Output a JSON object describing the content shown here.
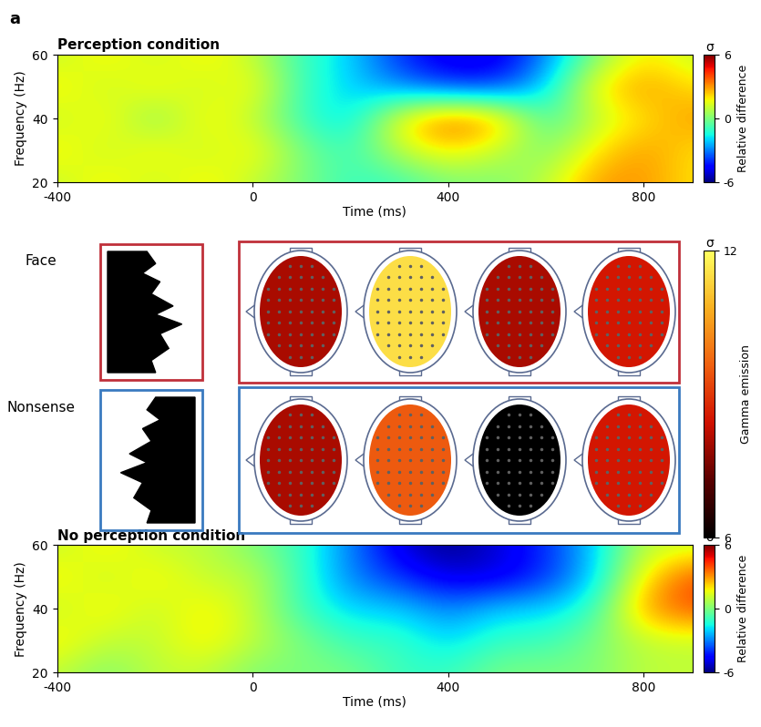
{
  "panel_label": "a",
  "chart_data": [
    {
      "type": "heatmap",
      "title": "Perception condition",
      "xlabel": "Time (ms)",
      "ylabel": "Frequency (Hz)",
      "x": [
        -400,
        -300,
        -200,
        -100,
        0,
        100,
        200,
        300,
        400,
        500,
        600,
        700,
        800,
        900
      ],
      "y": [
        20,
        30,
        40,
        50,
        60
      ],
      "cells": [
        [
          1,
          2,
          1,
          2,
          1,
          0,
          -1,
          -1,
          0,
          0,
          1,
          3,
          3,
          2
        ],
        [
          2,
          1,
          2,
          1,
          2,
          0,
          -1,
          1,
          2,
          1,
          0,
          2,
          3,
          2
        ],
        [
          1,
          2,
          0,
          2,
          1,
          -1,
          -2,
          2,
          4,
          3,
          -1,
          1,
          2,
          3
        ],
        [
          2,
          1,
          2,
          1,
          2,
          -1,
          -2,
          -3,
          -4,
          -4,
          -2,
          2,
          3,
          2
        ],
        [
          1,
          2,
          1,
          2,
          1,
          -1,
          -2,
          -4,
          -5,
          -5,
          -3,
          0,
          2,
          1
        ]
      ],
      "xlim": [
        -400,
        900
      ],
      "ylim": [
        20,
        60
      ],
      "xticks": [
        -400,
        0,
        400,
        800
      ],
      "yticks": [
        20,
        40,
        60
      ],
      "colorbar": {
        "range": [
          -6,
          6
        ],
        "ticks": [
          -6,
          0,
          6
        ],
        "label": "Relative difference",
        "unit": "σ"
      }
    },
    {
      "type": "heatmap",
      "title": "No perception condition",
      "xlabel": "Time (ms)",
      "ylabel": "Frequency (Hz)",
      "x": [
        -400,
        -300,
        -200,
        -100,
        0,
        100,
        200,
        300,
        400,
        500,
        600,
        700,
        800,
        900
      ],
      "y": [
        20,
        30,
        40,
        50,
        60
      ],
      "cells": [
        [
          1,
          0,
          1,
          1,
          0,
          0,
          0,
          -1,
          -1,
          0,
          0,
          0,
          1,
          1
        ],
        [
          2,
          1,
          1,
          2,
          1,
          0,
          -1,
          -1,
          -2,
          -1,
          -1,
          0,
          1,
          1
        ],
        [
          1,
          2,
          1,
          2,
          1,
          -1,
          -2,
          -2,
          -3,
          -2,
          -2,
          -1,
          3,
          4
        ],
        [
          2,
          1,
          2,
          1,
          1,
          -1,
          -3,
          -4,
          -5,
          -5,
          -4,
          -2,
          2,
          4
        ],
        [
          1,
          2,
          1,
          1,
          0,
          -1,
          -3,
          -5,
          -6,
          -5,
          -4,
          -2,
          1,
          1
        ]
      ],
      "xlim": [
        -400,
        900
      ],
      "ylim": [
        20,
        60
      ],
      "xticks": [
        -400,
        0,
        400,
        800
      ],
      "yticks": [
        20,
        40,
        60
      ],
      "colorbar": {
        "range": [
          -6,
          6
        ],
        "ticks": [
          -6,
          0,
          6
        ],
        "label": "Relative difference",
        "unit": "σ"
      }
    }
  ],
  "topographies": {
    "rows": [
      {
        "label": "Face",
        "values": [
          8,
          11.5,
          8,
          8.5
        ]
      },
      {
        "label": "Nonsense",
        "values": [
          8,
          9.5,
          6,
          8.5
        ]
      }
    ],
    "colorbar": {
      "range": [
        6,
        12
      ],
      "ticks": [
        6,
        12
      ],
      "label": "Gamma emission",
      "unit": "σ"
    }
  }
}
